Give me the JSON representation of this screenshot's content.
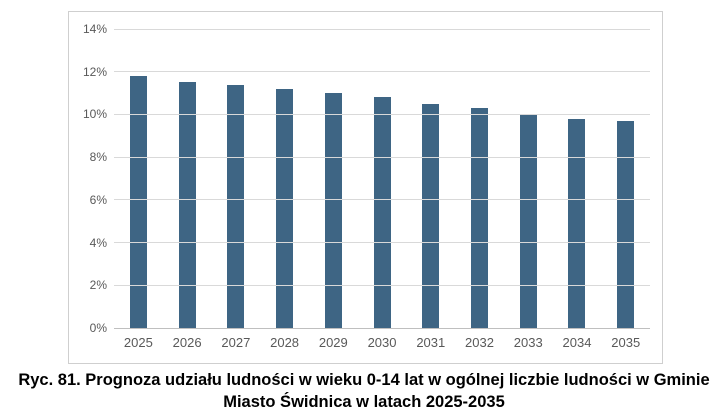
{
  "figure": {
    "caption": "Ryc. 81. Prognoza udziału ludności w wieku 0-14 lat w ogólnej liczbie ludności w Gminie Miasto Świdnica w latach 2025-2035",
    "caption_lines": [
      "Ryc. 81. Prognoza udziału ludności w wieku 0-14 lat w ogólnej liczbie ludności w Gminie",
      "Miasto Świdnica w latach 2025-2035"
    ]
  },
  "chart_data": {
    "type": "bar",
    "title": "",
    "xlabel": "",
    "ylabel": "",
    "categories": [
      "2025",
      "2026",
      "2027",
      "2028",
      "2029",
      "2030",
      "2031",
      "2032",
      "2033",
      "2034",
      "2035"
    ],
    "values": [
      11.8,
      11.5,
      11.4,
      11.2,
      11.0,
      10.8,
      10.5,
      10.3,
      10.0,
      9.8,
      9.7
    ],
    "ylim": [
      0,
      14
    ],
    "ytick_step": 2,
    "ytick_labels": [
      "0%",
      "2%",
      "4%",
      "6%",
      "8%",
      "10%",
      "12%",
      "14%"
    ],
    "grid": true,
    "legend_position": "none",
    "bar_color": "#3e6584",
    "gridline_color": "#d9d9d9",
    "axis_line_color": "#bfbfbf",
    "tick_label_color": "#595959",
    "frame_border_color": "#cfcfcf"
  }
}
